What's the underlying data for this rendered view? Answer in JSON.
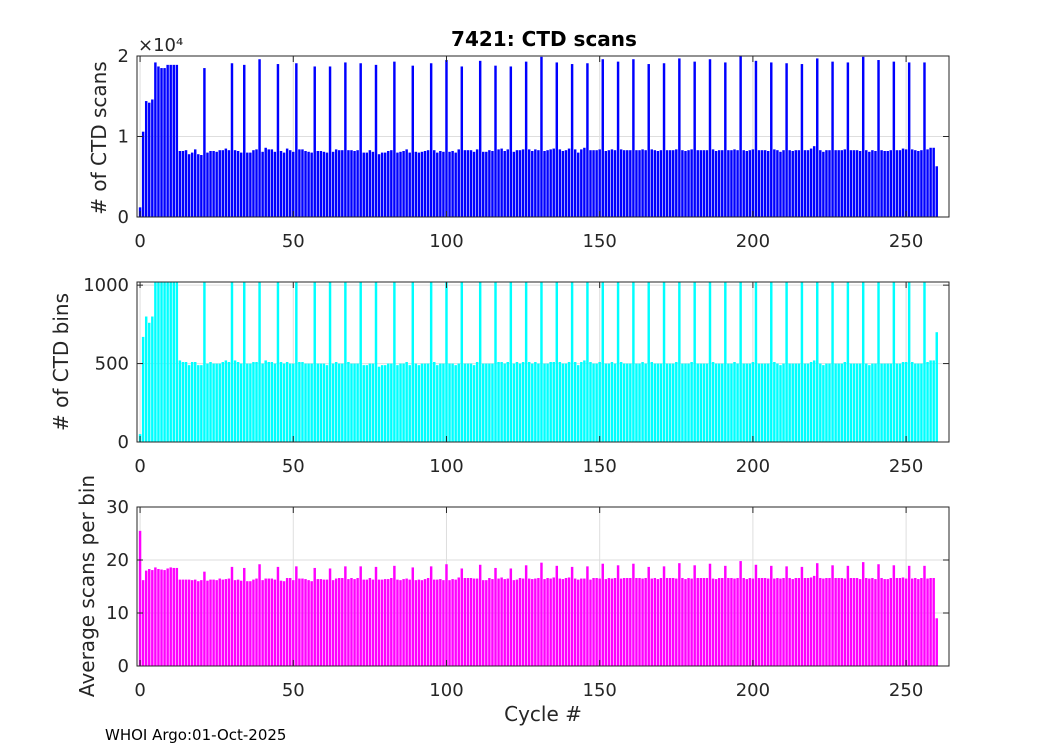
{
  "footer": {
    "text": "WHOI Argo:01-Oct-2025"
  },
  "chart_data": [
    {
      "type": "bar",
      "title": "7421: CTD scans",
      "xlabel": "",
      "ylabel": "# of CTD scans",
      "exponent_label": "×10⁴",
      "xlim": [
        -1,
        264
      ],
      "ylim": [
        0,
        20000
      ],
      "xticks": [
        0,
        50,
        100,
        150,
        200,
        250
      ],
      "xtick_labels": [
        "0",
        "50",
        "100",
        "150",
        "200",
        "250"
      ],
      "yticks": [
        0,
        10000,
        20000
      ],
      "ytick_labels": [
        "0",
        "1",
        "2"
      ],
      "color": "#0000ff",
      "grid": true,
      "x_start": 0,
      "values": [
        1200,
        10600,
        14400,
        14200,
        14600,
        19200,
        18700,
        18500,
        18500,
        18900,
        18900,
        18900,
        18900,
        8200,
        8200,
        8300,
        7800,
        8000,
        8400,
        7800,
        7700,
        18500,
        8000,
        8200,
        8200,
        8100,
        8300,
        8300,
        8500,
        8300,
        19100,
        8300,
        8200,
        8000,
        18900,
        8000,
        8000,
        8300,
        8400,
        19600,
        8100,
        8600,
        8400,
        8400,
        8100,
        19000,
        8200,
        8000,
        8500,
        8300,
        8100,
        19100,
        8400,
        8400,
        8200,
        8100,
        8000,
        18700,
        8200,
        8200,
        8100,
        8000,
        18700,
        8100,
        8400,
        8300,
        8300,
        19200,
        8300,
        8300,
        8200,
        8300,
        19100,
        8000,
        8000,
        8300,
        8100,
        18900,
        7800,
        8000,
        8000,
        8200,
        8300,
        19300,
        8000,
        8100,
        8200,
        8400,
        8000,
        18800,
        8100,
        8000,
        8100,
        8200,
        8300,
        19100,
        8300,
        8000,
        8200,
        8100,
        19500,
        8100,
        8200,
        8000,
        8400,
        18700,
        8300,
        8300,
        8300,
        8100,
        8400,
        19400,
        8100,
        8100,
        8300,
        8200,
        18800,
        8400,
        8500,
        8200,
        8400,
        18700,
        8100,
        8300,
        8300,
        8400,
        19300,
        8400,
        8200,
        8400,
        8300,
        19900,
        8200,
        8300,
        8400,
        8500,
        19200,
        8400,
        8200,
        8300,
        8500,
        19000,
        8400,
        8000,
        8400,
        8600,
        19100,
        8300,
        8300,
        8300,
        8400,
        19600,
        8200,
        8300,
        8400,
        8300,
        19300,
        8400,
        8300,
        8300,
        8300,
        19600,
        8300,
        8300,
        8400,
        8300,
        19000,
        8400,
        8300,
        8200,
        8300,
        19100,
        8300,
        8300,
        8300,
        8400,
        19700,
        8300,
        8200,
        8300,
        8400,
        19300,
        8300,
        8300,
        8300,
        8300,
        19600,
        8400,
        8200,
        8300,
        8300,
        19200,
        8300,
        8300,
        8400,
        8300,
        20100,
        8300,
        8200,
        8300,
        8400,
        19400,
        8300,
        8300,
        8300,
        8200,
        19200,
        8400,
        8300,
        8100,
        8300,
        19100,
        8300,
        8200,
        8300,
        8300,
        19000,
        8300,
        8300,
        8500,
        8800,
        19700,
        8300,
        8100,
        8300,
        8300,
        19300,
        8300,
        8300,
        8300,
        8400,
        19200,
        8300,
        8300,
        8300,
        8200,
        19900,
        8300,
        8100,
        8300,
        8200,
        19500,
        8300,
        8200,
        8200,
        8300,
        19300,
        8300,
        8300,
        8500,
        8400,
        19200,
        8400,
        8300,
        8200,
        8300,
        19200,
        8400,
        8600,
        8600,
        6300
      ]
    },
    {
      "type": "bar",
      "title": "",
      "xlabel": "",
      "ylabel": "# of CTD bins",
      "xlim": [
        -1,
        264
      ],
      "ylim": [
        0,
        1020
      ],
      "xticks": [
        0,
        50,
        100,
        150,
        200,
        250
      ],
      "xtick_labels": [
        "0",
        "50",
        "100",
        "150",
        "200",
        "250"
      ],
      "yticks": [
        0,
        500,
        1000
      ],
      "ytick_labels": [
        "0",
        "500",
        "1000"
      ],
      "color": "#00ffff",
      "grid": true,
      "x_start": 0,
      "values": [
        50,
        670,
        800,
        760,
        800,
        1020,
        1020,
        1020,
        1020,
        1020,
        1020,
        1020,
        1020,
        520,
        510,
        510,
        490,
        510,
        510,
        490,
        490,
        1020,
        500,
        510,
        500,
        500,
        500,
        510,
        520,
        510,
        1020,
        520,
        510,
        500,
        1020,
        500,
        500,
        510,
        510,
        1020,
        500,
        520,
        510,
        510,
        500,
        1020,
        510,
        500,
        510,
        500,
        500,
        1020,
        510,
        510,
        500,
        500,
        500,
        1020,
        500,
        500,
        500,
        490,
        1020,
        500,
        510,
        500,
        500,
        1020,
        510,
        500,
        500,
        500,
        1020,
        490,
        490,
        500,
        500,
        1020,
        480,
        490,
        490,
        500,
        500,
        1020,
        490,
        500,
        500,
        510,
        490,
        1020,
        500,
        490,
        500,
        500,
        500,
        1020,
        510,
        490,
        500,
        500,
        1020,
        500,
        500,
        490,
        500,
        1020,
        500,
        500,
        500,
        490,
        510,
        1020,
        500,
        500,
        500,
        500,
        1020,
        510,
        510,
        500,
        510,
        1020,
        500,
        510,
        500,
        510,
        1020,
        510,
        500,
        510,
        500,
        1020,
        500,
        500,
        510,
        510,
        1020,
        510,
        500,
        500,
        510,
        1020,
        510,
        490,
        510,
        520,
        1020,
        510,
        500,
        500,
        510,
        1020,
        500,
        500,
        510,
        500,
        1020,
        510,
        500,
        500,
        500,
        1020,
        500,
        500,
        510,
        500,
        1020,
        510,
        500,
        500,
        500,
        1020,
        500,
        500,
        500,
        510,
        1020,
        500,
        500,
        500,
        510,
        1020,
        500,
        500,
        500,
        500,
        1020,
        510,
        500,
        500,
        500,
        1020,
        500,
        500,
        510,
        500,
        1020,
        500,
        500,
        500,
        510,
        1020,
        500,
        500,
        500,
        500,
        1020,
        510,
        500,
        490,
        500,
        1020,
        500,
        500,
        500,
        500,
        1020,
        500,
        500,
        510,
        520,
        1020,
        500,
        490,
        500,
        500,
        1020,
        500,
        500,
        500,
        510,
        1020,
        500,
        500,
        500,
        500,
        1020,
        500,
        490,
        500,
        500,
        1020,
        500,
        500,
        500,
        500,
        1020,
        500,
        500,
        510,
        510,
        1020,
        510,
        500,
        500,
        500,
        1020,
        510,
        520,
        520,
        700
      ]
    },
    {
      "type": "bar",
      "title": "",
      "xlabel": "Cycle #",
      "ylabel": "Average scans per bin",
      "xlim": [
        -1,
        264
      ],
      "ylim": [
        0,
        30
      ],
      "xticks": [
        0,
        50,
        100,
        150,
        200,
        250
      ],
      "xtick_labels": [
        "0",
        "50",
        "100",
        "150",
        "200",
        "250"
      ],
      "yticks": [
        0,
        10,
        20,
        30
      ],
      "ytick_labels": [
        "0",
        "10",
        "20",
        "30"
      ],
      "color": "#ff00ff",
      "grid": true,
      "x_start": 0,
      "values": [
        25.5,
        16.2,
        18.0,
        18.3,
        18.1,
        18.6,
        18.3,
        18.2,
        18.1,
        18.4,
        18.6,
        18.5,
        18.5,
        16.3,
        16.3,
        16.3,
        16.3,
        16.2,
        16.3,
        16.0,
        16.2,
        17.8,
        16.1,
        16.3,
        16.3,
        16.2,
        16.5,
        16.3,
        16.4,
        16.5,
        18.7,
        16.2,
        16.3,
        16.1,
        18.5,
        16.0,
        16.0,
        16.3,
        16.5,
        19.2,
        16.2,
        16.5,
        16.5,
        16.5,
        16.3,
        18.7,
        16.1,
        16.0,
        16.6,
        16.6,
        16.2,
        18.8,
        16.5,
        16.5,
        16.4,
        16.2,
        16.0,
        18.5,
        16.4,
        16.4,
        16.3,
        16.3,
        18.4,
        16.2,
        16.5,
        16.6,
        16.6,
        18.8,
        16.4,
        16.6,
        16.4,
        16.6,
        18.8,
        16.3,
        16.3,
        16.6,
        16.3,
        18.7,
        16.3,
        16.3,
        16.4,
        16.4,
        16.6,
        18.9,
        16.3,
        16.2,
        16.4,
        16.5,
        16.3,
        18.6,
        16.2,
        16.3,
        16.2,
        16.4,
        16.6,
        18.8,
        16.3,
        16.3,
        16.4,
        16.2,
        19.2,
        16.2,
        16.4,
        16.3,
        16.7,
        18.4,
        16.6,
        16.6,
        16.6,
        16.5,
        16.5,
        19.1,
        16.2,
        16.2,
        16.6,
        16.4,
        18.5,
        16.5,
        16.7,
        16.4,
        16.5,
        18.4,
        16.2,
        16.3,
        16.6,
        16.5,
        19.0,
        16.5,
        16.4,
        16.5,
        16.6,
        19.5,
        16.4,
        16.6,
        16.5,
        16.7,
        18.9,
        16.5,
        16.4,
        16.6,
        16.7,
        18.7,
        16.5,
        16.3,
        16.5,
        16.5,
        18.8,
        16.3,
        16.6,
        16.6,
        16.5,
        19.3,
        16.4,
        16.6,
        16.5,
        16.6,
        19.0,
        16.5,
        16.6,
        16.6,
        16.6,
        19.3,
        16.6,
        16.6,
        16.5,
        16.6,
        18.7,
        16.5,
        16.6,
        16.4,
        16.6,
        18.8,
        16.6,
        16.6,
        16.6,
        16.5,
        19.4,
        16.6,
        16.4,
        16.6,
        16.5,
        19.0,
        16.6,
        16.6,
        16.6,
        16.6,
        19.3,
        16.5,
        16.4,
        16.6,
        16.6,
        18.9,
        16.6,
        16.6,
        16.5,
        16.6,
        19.8,
        16.6,
        16.4,
        16.6,
        16.5,
        19.1,
        16.6,
        16.6,
        16.6,
        16.5,
        18.9,
        16.5,
        16.6,
        16.5,
        16.6,
        18.8,
        16.6,
        16.4,
        16.6,
        16.6,
        18.7,
        16.6,
        16.6,
        16.7,
        17.0,
        19.4,
        16.6,
        16.5,
        16.6,
        16.6,
        19.0,
        16.6,
        16.6,
        16.6,
        16.5,
        18.9,
        16.6,
        16.6,
        16.6,
        16.4,
        19.6,
        16.6,
        16.5,
        16.6,
        16.4,
        19.2,
        16.6,
        16.4,
        16.4,
        16.6,
        19.0,
        16.6,
        16.6,
        16.7,
        16.5,
        18.9,
        16.5,
        16.6,
        16.4,
        16.6,
        18.9,
        16.5,
        16.6,
        16.6,
        9.0
      ]
    }
  ]
}
